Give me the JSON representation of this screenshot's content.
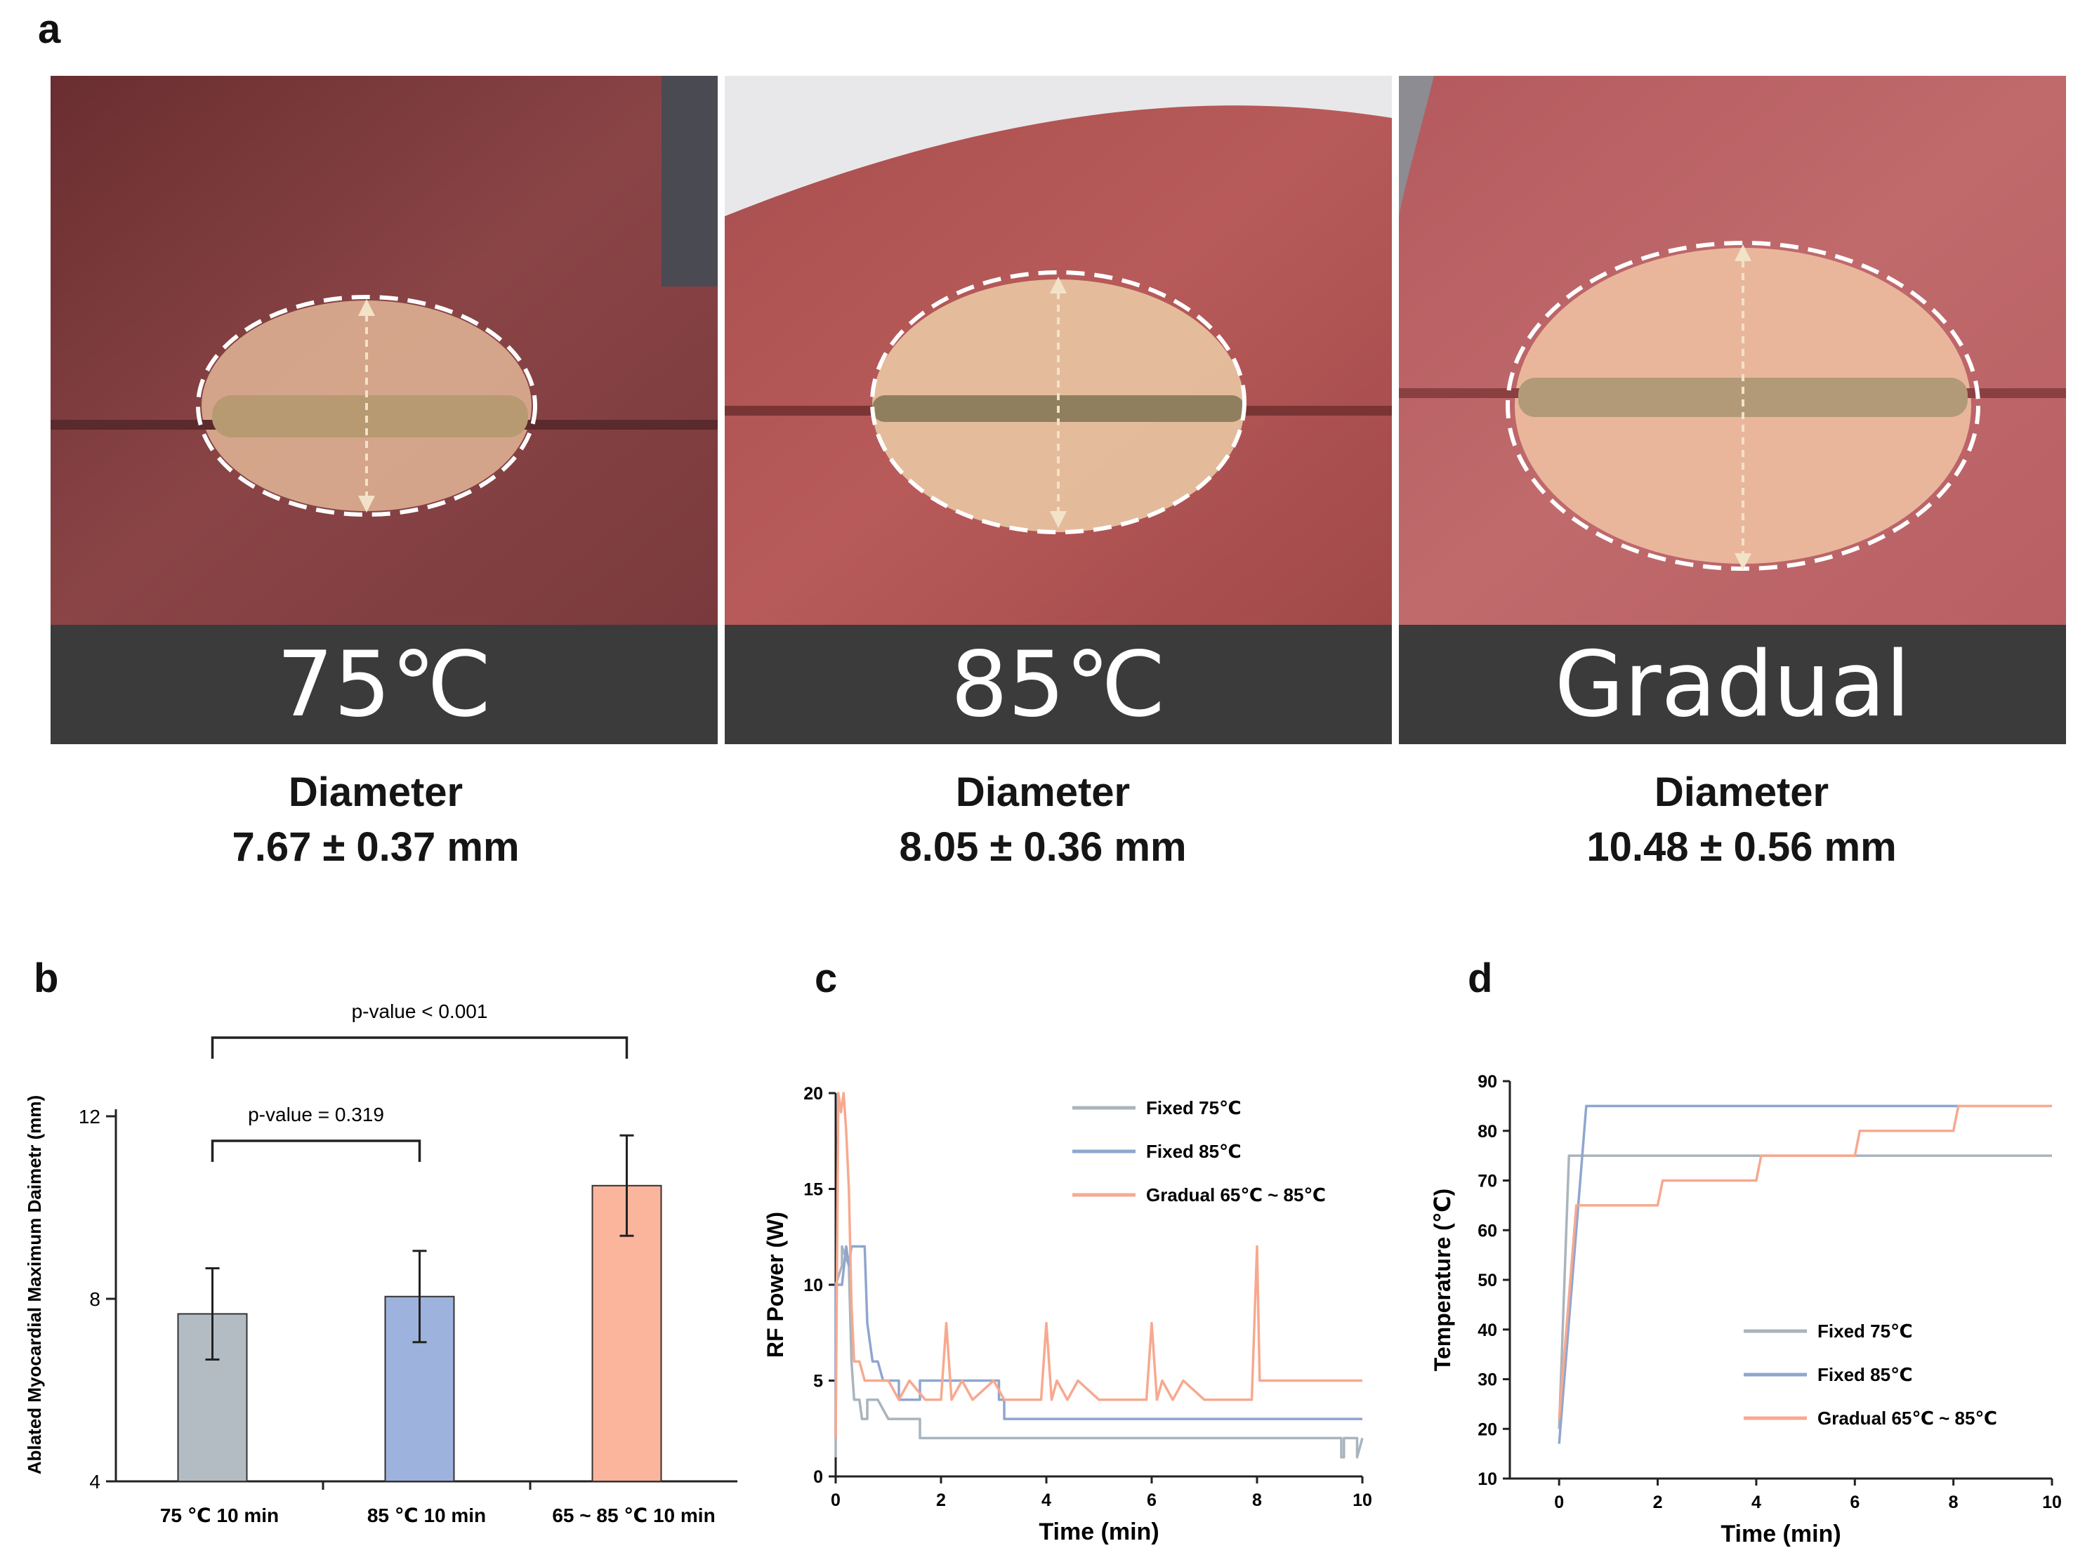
{
  "panel_a": {
    "letter": "a",
    "photos": [
      {
        "label": "75℃",
        "diameter_title": "Diameter",
        "diameter_value": "7.67 ± 0.37 mm"
      },
      {
        "label": "85℃",
        "diameter_title": "Diameter",
        "diameter_value": "8.05 ± 0.36 mm"
      },
      {
        "label": "Gradual",
        "diameter_title": "Diameter",
        "diameter_value": "10.48 ± 0.56 mm"
      }
    ]
  },
  "colors": {
    "gray": "#a9b4bd",
    "blue": "#8fa6cf",
    "salmon": "#f7a98f",
    "bar_gray": "#b4bcc3",
    "bar_blue": "#9db2dc",
    "bar_salmon": "#fbb59c"
  },
  "chart_data": [
    {
      "panel": "b",
      "type": "bar",
      "title": "",
      "ylabel": "Ablated Myocardial Maximum Daimetr (mm)",
      "xlabel": "",
      "ylim": [
        4,
        12
      ],
      "yticks": [
        4,
        8,
        12
      ],
      "categories": [
        "75 ℃ 10 min",
        "85 ℃ 10 min",
        "65 ~ 85  ℃ 10 min"
      ],
      "values": [
        7.67,
        8.05,
        10.48
      ],
      "errors": [
        1.0,
        1.0,
        1.1
      ],
      "annotations": [
        {
          "text": "p-value < 0.001",
          "from": 0,
          "to": 2
        },
        {
          "text": "p-value = 0.319",
          "from": 0,
          "to": 1
        }
      ]
    },
    {
      "panel": "c",
      "type": "line",
      "xlabel": "Time (min)",
      "ylabel": "RF Power (W)",
      "xlim": [
        0,
        10
      ],
      "ylim": [
        0,
        20
      ],
      "xticks": [
        0,
        2,
        4,
        6,
        8,
        10
      ],
      "yticks": [
        0,
        5,
        10,
        15,
        20
      ],
      "legend": "top-right",
      "series": [
        {
          "name": "Fixed 75℃",
          "color": "#a9b4bd",
          "x": [
            0,
            0,
            0.12,
            0.12,
            0.25,
            0.3,
            0.35,
            0.45,
            0.5,
            0.6,
            0.6,
            0.8,
            1.0,
            1.6,
            1.6,
            3.0,
            3.0,
            9.6,
            9.6,
            9.65,
            9.65,
            9.9,
            9.9,
            10
          ],
          "y": [
            1,
            10,
            11,
            12,
            11,
            6,
            4,
            4,
            3,
            3,
            4,
            4,
            3,
            3,
            2,
            2,
            2,
            2,
            1,
            1,
            2,
            2,
            1,
            2
          ]
        },
        {
          "name": "Fixed 85℃",
          "color": "#8fa6cf",
          "x": [
            0,
            0,
            0.12,
            0.2,
            0.25,
            0.3,
            0.55,
            0.6,
            0.7,
            0.8,
            0.9,
            1.0,
            1.2,
            1.2,
            1.6,
            1.6,
            3.1,
            3.1,
            3.2,
            3.2,
            10
          ],
          "y": [
            2,
            10,
            10,
            12,
            11,
            12,
            12,
            8,
            6,
            6,
            5,
            5,
            5,
            4,
            4,
            5,
            5,
            4,
            4,
            3,
            3
          ]
        },
        {
          "name": "Gradual 65℃ ~ 85℃",
          "color": "#f7a98f",
          "x": [
            0,
            0.05,
            0.1,
            0.15,
            0.2,
            0.25,
            0.3,
            0.35,
            0.45,
            0.55,
            0.7,
            1.0,
            1.2,
            1.4,
            1.7,
            2.0,
            2.1,
            2.2,
            2.4,
            2.6,
            3.0,
            3.2,
            3.4,
            3.9,
            4.0,
            4.1,
            4.2,
            4.4,
            4.6,
            5.0,
            5.2,
            5.4,
            5.9,
            6.0,
            6.1,
            6.2,
            6.4,
            6.6,
            7.0,
            7.2,
            7.4,
            7.9,
            8.0,
            8.05,
            8.1,
            8.15,
            10
          ],
          "y": [
            2,
            20,
            19,
            20,
            18,
            15,
            9,
            6,
            6,
            5,
            5,
            5,
            4,
            5,
            4,
            4,
            8,
            4,
            5,
            4,
            5,
            4,
            4,
            4,
            8,
            4,
            5,
            4,
            5,
            4,
            4,
            4,
            4,
            8,
            4,
            5,
            4,
            5,
            4,
            4,
            4,
            4,
            12,
            5,
            5,
            5,
            5
          ]
        }
      ]
    },
    {
      "panel": "d",
      "type": "line",
      "xlabel": "Time (min)",
      "ylabel": "Temperature (℃)",
      "xlim": [
        -1,
        10
      ],
      "ylim": [
        10,
        90
      ],
      "xticks": [
        0,
        2,
        4,
        6,
        8,
        10
      ],
      "yticks": [
        10,
        20,
        30,
        40,
        50,
        60,
        70,
        80,
        90
      ],
      "legend": "bottom-right",
      "series": [
        {
          "name": "Fixed 75℃",
          "color": "#a9b4bd",
          "x": [
            0,
            0.2,
            10
          ],
          "y": [
            20,
            75,
            75
          ]
        },
        {
          "name": "Fixed 85℃",
          "color": "#8fa6cf",
          "x": [
            0,
            0.55,
            8.1
          ],
          "y": [
            17,
            85,
            85
          ]
        },
        {
          "name": "Gradual 65℃ ~ 85℃",
          "color": "#f7a98f",
          "x": [
            0,
            0.35,
            2.0,
            2.1,
            4.0,
            4.1,
            6.0,
            6.1,
            8.0,
            8.1,
            10
          ],
          "y": [
            22,
            65,
            65,
            70,
            70,
            75,
            75,
            80,
            80,
            85,
            85
          ]
        }
      ]
    }
  ]
}
